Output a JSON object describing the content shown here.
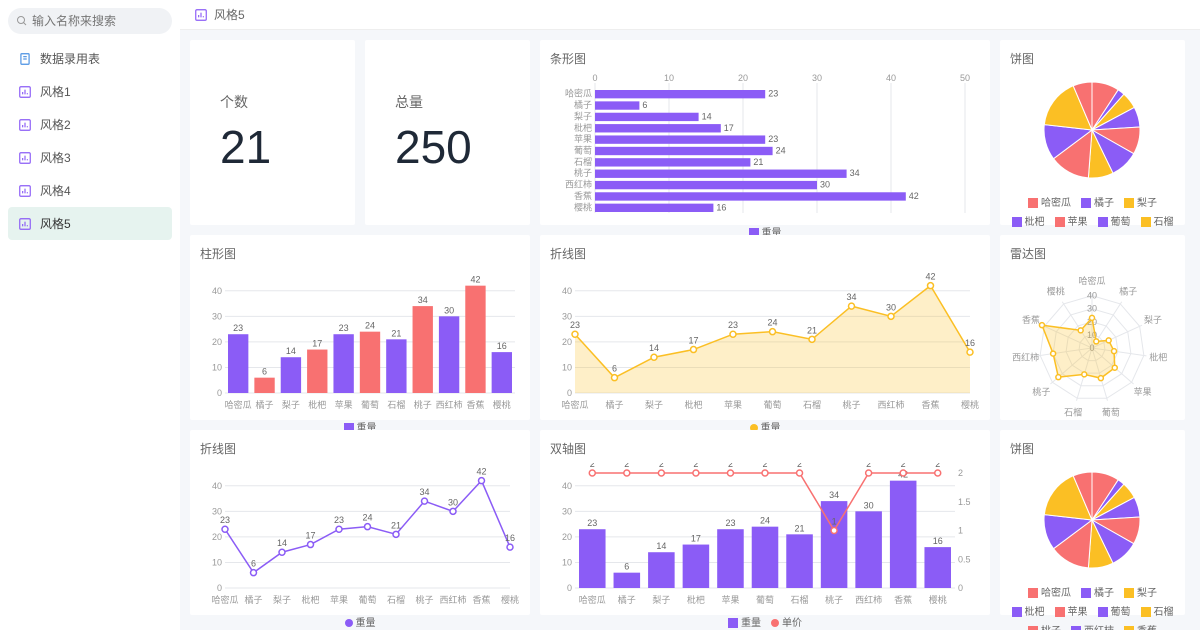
{
  "search": {
    "placeholder": "输入名称来搜索"
  },
  "nav": {
    "items": [
      {
        "label": "数据录用表",
        "icon": "doc",
        "color": "#4a90e2"
      },
      {
        "label": "风格1",
        "icon": "chart",
        "color": "#8b5cf6"
      },
      {
        "label": "风格2",
        "icon": "chart",
        "color": "#8b5cf6"
      },
      {
        "label": "风格3",
        "icon": "chart",
        "color": "#8b5cf6"
      },
      {
        "label": "风格4",
        "icon": "chart",
        "color": "#8b5cf6"
      },
      {
        "label": "风格5",
        "icon": "chart",
        "color": "#8b5cf6"
      }
    ],
    "active": 5
  },
  "crumb": {
    "title": "风格5"
  },
  "kpi": [
    {
      "label": "个数",
      "value": "21"
    },
    {
      "label": "总量",
      "value": "250"
    }
  ],
  "fruits": [
    "哈密瓜",
    "橘子",
    "梨子",
    "枇杷",
    "苹果",
    "葡萄",
    "石榴",
    "桃子",
    "西红柿",
    "香蕉",
    "樱桃"
  ],
  "weights": [
    23,
    6,
    14,
    17,
    23,
    24,
    21,
    34,
    30,
    42,
    16
  ],
  "prices": [
    2,
    2,
    2,
    2,
    2,
    2,
    2,
    1,
    2,
    2,
    2
  ],
  "colors": {
    "purple": "#8b5cf6",
    "pink": "#f87171",
    "yellow": "#fbbf24",
    "grid": "#e5e7eb",
    "bg": "#ffffff",
    "axis": "#999999"
  },
  "pie_colors": [
    "#f87171",
    "#8b5cf6",
    "#fbbf24",
    "#8b5cf6",
    "#f87171",
    "#8b5cf6",
    "#fbbf24",
    "#f87171",
    "#8b5cf6",
    "#fbbf24",
    "#f87171"
  ],
  "bar_alt_colors": [
    "#8b5cf6",
    "#f87171",
    "#8b5cf6",
    "#f87171",
    "#8b5cf6",
    "#f87171",
    "#8b5cf6",
    "#f87171",
    "#8b5cf6",
    "#f87171",
    "#8b5cf6"
  ],
  "titles": {
    "hbar": "条形图",
    "pie1": "饼图",
    "vbar": "柱形图",
    "line1": "折线图",
    "radar": "雷达图",
    "line2": "折线图",
    "dual": "双轴图",
    "pie2": "饼图"
  },
  "legend_weight": "重量",
  "legend_price": "单价",
  "hbar": {
    "xlim": [
      0,
      50
    ],
    "xtick_step": 10
  },
  "vbar": {
    "ylim": [
      0,
      40
    ],
    "ytick_step": 10
  },
  "line": {
    "ylim": [
      0,
      40
    ],
    "ytick_step": 10
  },
  "dual": {
    "ylim": [
      0,
      40
    ],
    "ytick_step": 10,
    "y2lim": [
      0,
      2
    ],
    "y2tick_step": 0.5
  },
  "radar": {
    "rings": [
      0,
      10,
      20,
      30,
      40
    ]
  }
}
